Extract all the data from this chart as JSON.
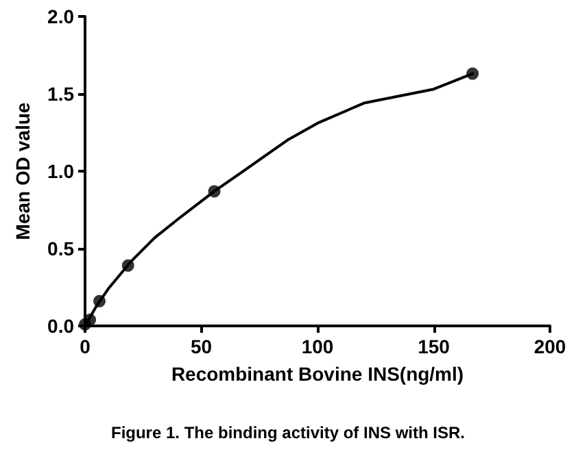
{
  "chart_data": {
    "type": "scatter",
    "title": "Figure 1. The binding activity of INS with ISR.",
    "xlabel": "Recombinant Bovine INS(ng/ml)",
    "ylabel": "Mean OD value",
    "x": [
      0,
      2.1,
      6.2,
      18.5,
      55.6,
      166.7
    ],
    "series": [
      {
        "color": "#000000",
        "values": [
          0.01,
          0.04,
          0.16,
          0.39,
          0.87,
          1.63
        ],
        "marker": "circle"
      },
      {
        "type": "line",
        "color": "#000000",
        "marker": "none",
        "line_style": "solid",
        "x": [
          0,
          5,
          10,
          20,
          30,
          40,
          55.6,
          70,
          87,
          100,
          120,
          150,
          166.7
        ],
        "values": [
          0,
          0.13,
          0.24,
          0.42,
          0.57,
          0.69,
          0.87,
          1.02,
          1.2,
          1.31,
          1.44,
          1.53,
          1.63
        ]
      }
    ],
    "xlim": [
      0,
      200
    ],
    "xticks": [
      0,
      50,
      100,
      150,
      200
    ],
    "ylim": [
      0,
      2.0
    ],
    "yticks": [
      {
        "value": 0,
        "label": "0.0"
      },
      {
        "value": 0.5,
        "label": "0.5"
      },
      {
        "value": 1,
        "label": "1.0"
      },
      {
        "value": 1.5,
        "label": "1.5"
      },
      {
        "value": 2,
        "label": "2.0"
      }
    ],
    "grid": false
  }
}
